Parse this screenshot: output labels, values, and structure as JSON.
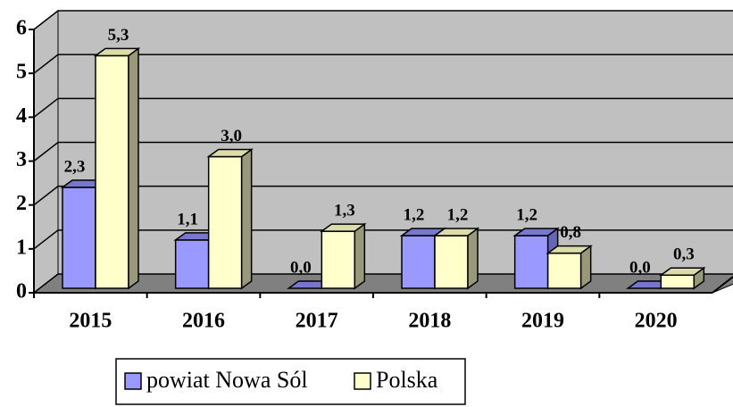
{
  "chart_data": {
    "type": "bar3d",
    "categories": [
      "2015",
      "2016",
      "2017",
      "2018",
      "2019",
      "2020"
    ],
    "series": [
      {
        "name": "powiat Nowa Sól",
        "color": "#9999ff",
        "values": [
          2.3,
          1.1,
          0.0,
          1.2,
          1.2,
          0.0
        ],
        "value_labels": [
          "2,3",
          "1,1",
          "0,0",
          "1,2",
          "1,2",
          "0,0"
        ]
      },
      {
        "name": "Polska",
        "color": "#ffffcc",
        "values": [
          5.3,
          3.0,
          1.3,
          1.2,
          0.8,
          0.3
        ],
        "value_labels": [
          "5,3",
          "3,0",
          "1,3",
          "1,2",
          "0,8",
          "0,3"
        ]
      }
    ],
    "ylim": [
      0,
      6
    ],
    "yticks": [
      0,
      1,
      2,
      3,
      4,
      5,
      6
    ],
    "grid": true,
    "legend": "bottom"
  }
}
